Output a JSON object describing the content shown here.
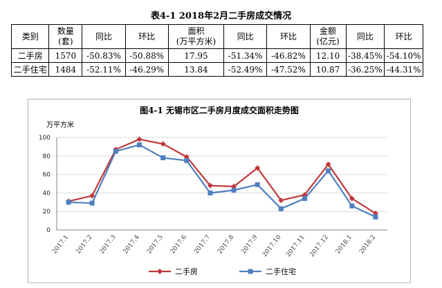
{
  "table": {
    "title": "表4-1  2018年2月二手房成交情况",
    "headers": [
      "类别",
      "数量\n(套)",
      "同比",
      "环比",
      "面积\n(万平方米)",
      "同比",
      "环比",
      "金额\n(亿元)",
      "同比",
      "环比"
    ],
    "rows": [
      [
        "二手房",
        "1570",
        "-50.83%",
        "-50.88%",
        "17.95",
        "-51.34%",
        "-46.82%",
        "12.10",
        "-38.45%",
        "-54.10%"
      ],
      [
        "二手住宅",
        "1484",
        "-52.11%",
        "-46.29%",
        "13.84",
        "-52.49%",
        "-47.52%",
        "10.87",
        "-36.25%",
        "-44.31%"
      ]
    ]
  },
  "chart_data": {
    "type": "line",
    "title": "图4-1  无锡市区二手房月度成交面积走势图",
    "ylabel": "万平方米",
    "xlabel": "",
    "categories": [
      "2017.1",
      "2017.2",
      "2017.3",
      "2017.4",
      "2017.5",
      "2017.6",
      "2017.7",
      "2017.8",
      "2017.9",
      "2017.10",
      "2017.11",
      "2017.12",
      "2018.1",
      "2018.2"
    ],
    "ylim": [
      0,
      100
    ],
    "yticks": [
      0,
      20,
      40,
      60,
      80,
      100
    ],
    "grid": true,
    "legend": "bottom",
    "series": [
      {
        "name": "二手房",
        "color": "#c0373a",
        "marker": "diamond",
        "values": [
          31,
          37,
          87,
          98,
          93,
          79,
          48,
          47,
          67,
          32,
          38,
          71,
          34,
          18
        ]
      },
      {
        "name": "二手住宅",
        "color": "#4f7fbf",
        "marker": "square",
        "values": [
          30,
          29,
          85,
          92,
          78,
          75,
          40,
          43,
          49,
          23,
          34,
          64,
          26,
          14
        ]
      }
    ]
  }
}
